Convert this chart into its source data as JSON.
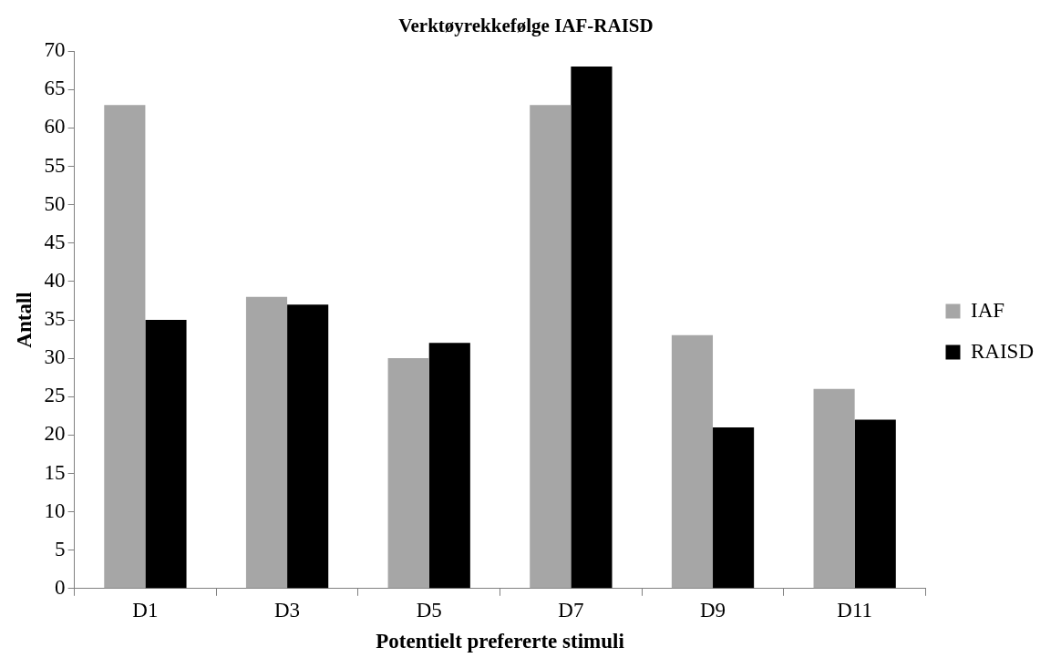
{
  "chart_data": {
    "type": "bar",
    "title": "Verktøyrekkefølge IAF-RAISD",
    "xlabel": "Potentielt prefererte stimuli",
    "ylabel": "Antall",
    "categories": [
      "D1",
      "D3",
      "D5",
      "D7",
      "D9",
      "D11"
    ],
    "series": [
      {
        "name": "IAF",
        "color": "#a6a6a6",
        "values": [
          63,
          38,
          30,
          63,
          33,
          26
        ]
      },
      {
        "name": "RAISD",
        "color": "#000000",
        "values": [
          35,
          37,
          32,
          68,
          21,
          22
        ]
      }
    ],
    "ylim": [
      0,
      70
    ],
    "yticks": [
      0,
      5,
      10,
      15,
      20,
      25,
      30,
      35,
      40,
      45,
      50,
      55,
      60,
      65,
      70
    ],
    "grid": false,
    "legend": "right"
  }
}
